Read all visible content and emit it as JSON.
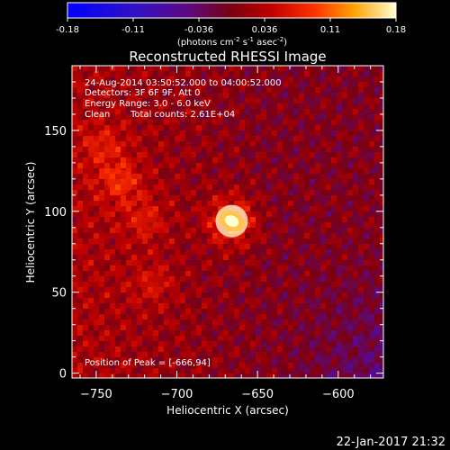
{
  "chart_data": {
    "type": "heatmap",
    "title": "Reconstructed RHESSI Image",
    "xlabel": "Heliocentric X (arcsec)",
    "ylabel": "Heliocentric Y (arcsec)",
    "xlim": [
      -765,
      -572
    ],
    "ylim": [
      -3,
      190
    ],
    "xticks": [
      -750,
      -700,
      -650,
      -600
    ],
    "yticks": [
      0,
      50,
      100,
      150
    ],
    "colorbar": {
      "ticks": [
        "-0.18",
        "-0.11",
        "-0.036",
        "0.036",
        "0.11",
        "0.18"
      ],
      "range": [
        -0.18,
        0.18
      ],
      "unit_main": "(photons cm",
      "unit_sup1": "-2",
      "unit_mid": " s",
      "unit_sup2": "-1",
      "unit_mid2": " asec",
      "unit_sup3": "-2",
      "unit_end": ")"
    },
    "peak": {
      "x": -666,
      "y": 94,
      "value": 0.18
    },
    "sources": [
      {
        "x": -666,
        "y": 94,
        "value": 0.18
      },
      {
        "x": -735,
        "y": 118,
        "value": 0.09
      },
      {
        "x": -720,
        "y": 95,
        "value": 0.07
      },
      {
        "x": -745,
        "y": 140,
        "value": 0.07
      },
      {
        "x": -715,
        "y": 55,
        "value": 0.06
      }
    ]
  },
  "annotations": {
    "time_range": "24-Aug-2014 03:50:52.000 to 04:00:52.000",
    "detectors": "Detectors: 3F 6F 9F, Att 0",
    "energy": "Energy Range: 3.0 - 6.0 keV",
    "method": "Clean",
    "counts": "Total counts: 2.61E+04",
    "peak_text": "Position of Peak = [-666,94]"
  },
  "footer": {
    "timestamp": "22-Jan-2017 21:32"
  }
}
